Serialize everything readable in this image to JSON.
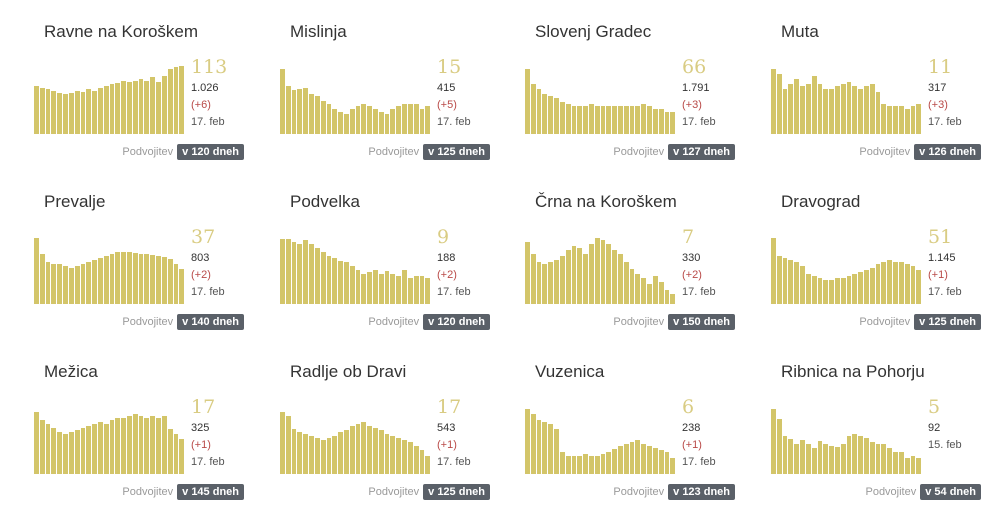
{
  "double_label": "Podvojitev",
  "cards": [
    {
      "name": "Ravne na Koroškem",
      "value": "113",
      "total": "1.026",
      "delta": "(+6)",
      "date": "17. feb",
      "doubling": "v 120 dneh",
      "bars": [
        48,
        46,
        45,
        43,
        41,
        40,
        41,
        43,
        42,
        45,
        43,
        46,
        48,
        50,
        51,
        53,
        52,
        53,
        55,
        53,
        57,
        52,
        58,
        65,
        67,
        68
      ]
    },
    {
      "name": "Mislinja",
      "value": "15",
      "total": "415",
      "delta": "(+5)",
      "date": "17. feb",
      "doubling": "v 125 dneh",
      "bars": [
        65,
        48,
        44,
        45,
        46,
        40,
        38,
        33,
        30,
        25,
        22,
        20,
        25,
        28,
        30,
        28,
        25,
        22,
        20,
        25,
        28,
        30,
        30,
        30,
        25,
        28
      ]
    },
    {
      "name": "Slovenj Gradec",
      "value": "66",
      "total": "1.791",
      "delta": "(+3)",
      "date": "17. feb",
      "doubling": "v 127 dneh",
      "bars": [
        65,
        50,
        45,
        40,
        38,
        36,
        32,
        30,
        28,
        28,
        28,
        30,
        28,
        28,
        28,
        28,
        28,
        28,
        28,
        28,
        30,
        28,
        25,
        25,
        22,
        22
      ]
    },
    {
      "name": "Muta",
      "value": "11",
      "total": "317",
      "delta": "(+3)",
      "date": "17. feb",
      "doubling": "v 126 dneh",
      "bars": [
        65,
        60,
        45,
        50,
        55,
        48,
        50,
        58,
        50,
        45,
        45,
        48,
        50,
        52,
        48,
        45,
        48,
        50,
        42,
        30,
        28,
        28,
        28,
        25,
        28,
        30
      ]
    },
    {
      "name": "Prevalje",
      "value": "37",
      "total": "803",
      "delta": "(+2)",
      "date": "17. feb",
      "doubling": "v 140 dneh",
      "bars": [
        66,
        50,
        42,
        40,
        40,
        38,
        36,
        38,
        40,
        42,
        44,
        46,
        48,
        50,
        52,
        52,
        52,
        51,
        50,
        50,
        49,
        48,
        47,
        45,
        40,
        35
      ]
    },
    {
      "name": "Podvelka",
      "value": "9",
      "total": "188",
      "delta": "(+2)",
      "date": "17. feb",
      "doubling": "v 120 dneh",
      "bars": [
        65,
        65,
        62,
        60,
        64,
        60,
        56,
        52,
        48,
        46,
        43,
        42,
        38,
        34,
        30,
        32,
        34,
        30,
        33,
        30,
        28,
        34,
        26,
        28,
        28,
        26
      ]
    },
    {
      "name": "Črna na Koroškem",
      "value": "7",
      "total": "330",
      "delta": "(+2)",
      "date": "17. feb",
      "doubling": "v 150 dneh",
      "bars": [
        62,
        50,
        42,
        40,
        42,
        44,
        48,
        54,
        58,
        56,
        50,
        60,
        66,
        64,
        60,
        54,
        50,
        42,
        35,
        30,
        26,
        20,
        28,
        22,
        14,
        10
      ]
    },
    {
      "name": "Dravograd",
      "value": "51",
      "total": "1.145",
      "delta": "(+1)",
      "date": "17. feb",
      "doubling": "v 125 dneh",
      "bars": [
        66,
        48,
        46,
        44,
        42,
        38,
        30,
        28,
        26,
        24,
        24,
        26,
        26,
        28,
        30,
        32,
        34,
        36,
        40,
        42,
        44,
        42,
        42,
        40,
        38,
        34
      ]
    },
    {
      "name": "Mežica",
      "value": "17",
      "total": "325",
      "delta": "(+1)",
      "date": "17. feb",
      "doubling": "v 145 dneh",
      "bars": [
        62,
        54,
        50,
        46,
        42,
        40,
        42,
        44,
        46,
        48,
        50,
        52,
        50,
        54,
        56,
        56,
        58,
        60,
        58,
        56,
        58,
        56,
        58,
        45,
        40,
        35
      ]
    },
    {
      "name": "Radlje ob Dravi",
      "value": "17",
      "total": "543",
      "delta": "(+1)",
      "date": "17. feb",
      "doubling": "v 125 dneh",
      "bars": [
        62,
        58,
        45,
        42,
        40,
        38,
        36,
        34,
        36,
        38,
        42,
        44,
        48,
        50,
        52,
        48,
        46,
        44,
        40,
        38,
        36,
        34,
        32,
        28,
        24,
        18
      ]
    },
    {
      "name": "Vuzenica",
      "value": "6",
      "total": "238",
      "delta": "(+1)",
      "date": "17. feb",
      "doubling": "v 123 dneh",
      "bars": [
        65,
        60,
        54,
        52,
        50,
        45,
        22,
        18,
        18,
        18,
        20,
        18,
        18,
        20,
        22,
        25,
        28,
        30,
        32,
        34,
        30,
        28,
        26,
        24,
        22,
        16
      ]
    },
    {
      "name": "Ribnica na Pohorju",
      "value": "5",
      "total": "92",
      "delta": "",
      "date": "15. feb",
      "doubling": "v 54 dneh",
      "bars": [
        65,
        55,
        38,
        35,
        30,
        34,
        30,
        26,
        33,
        30,
        28,
        27,
        30,
        38,
        40,
        38,
        36,
        32,
        30,
        30,
        26,
        22,
        22,
        16,
        18,
        16
      ]
    }
  ]
}
